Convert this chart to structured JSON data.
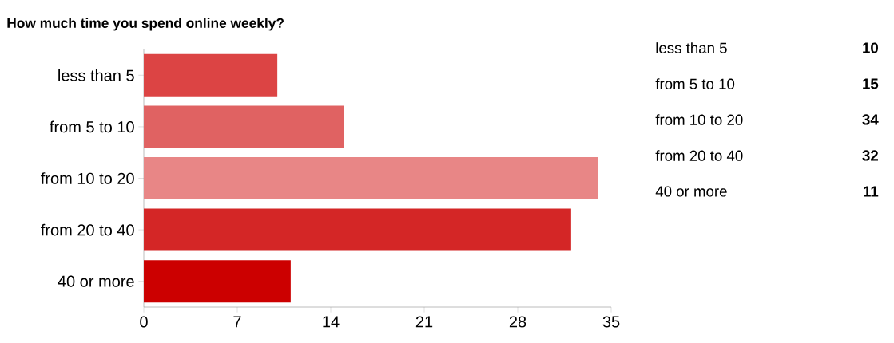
{
  "chart_data": [
    {
      "type": "bar",
      "orientation": "horizontal",
      "title": "How much time you spend online weekly?",
      "categories": [
        "less than 5",
        "from 5 to 10",
        "from 10 to 20",
        "from 20 to 40",
        "40 or more"
      ],
      "values": [
        10,
        15,
        34,
        32,
        11
      ],
      "colors": [
        "#dc4444",
        "#e06262",
        "#e88686",
        "#d42626",
        "#cc0000"
      ],
      "xlim": [
        0,
        35
      ],
      "xticks": [
        0,
        7,
        14,
        21,
        28,
        35
      ]
    },
    {
      "type": "other",
      "categories": [
        "less than 5",
        "from 5 to 10",
        "from 10 to 20",
        "from 20 to 40",
        "40 or more"
      ],
      "values": [
        10,
        15,
        34,
        32,
        11
      ],
      "data_labels": true
    }
  ]
}
